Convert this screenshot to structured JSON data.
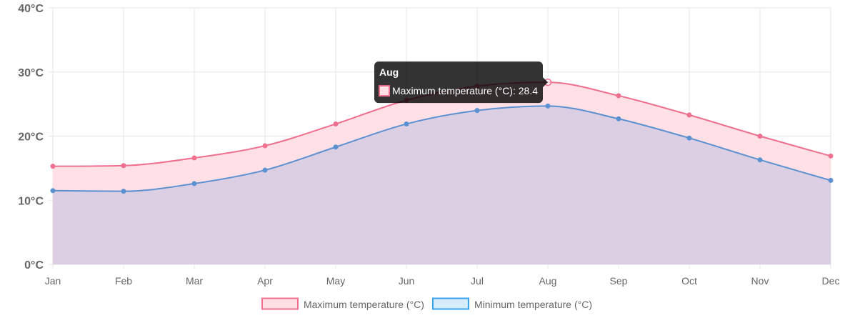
{
  "chart_data": {
    "type": "area",
    "title": "",
    "xlabel": "",
    "ylabel": "",
    "categories": [
      "Jan",
      "Feb",
      "Mar",
      "Apr",
      "May",
      "Jun",
      "Jul",
      "Aug",
      "Sep",
      "Oct",
      "Nov",
      "Dec"
    ],
    "ylim": [
      0,
      40
    ],
    "y_ticks": [
      "0°C",
      "10°C",
      "20°C",
      "30°C",
      "40°C"
    ],
    "grid": true,
    "legend_position": "bottom",
    "series": [
      {
        "name": "Maximum temperature (°C)",
        "values": [
          15.3,
          15.4,
          16.6,
          18.5,
          21.9,
          25.6,
          27.8,
          28.4,
          26.3,
          23.3,
          20.0,
          16.9
        ],
        "line_color": "#ef6f8f",
        "fill_color": "#ffe0e6"
      },
      {
        "name": "Minimum temperature (°C)",
        "values": [
          11.5,
          11.4,
          12.6,
          14.7,
          18.3,
          21.9,
          24.0,
          24.7,
          22.7,
          19.7,
          16.3,
          13.1
        ],
        "line_color": "#5b91d1",
        "fill_color": "#dccfe4",
        "legend_fill": "#d6ecfb",
        "legend_border": "#36a2eb"
      }
    ],
    "tooltip": {
      "title": "Aug",
      "label": "Maximum temperature (°C): 28.4",
      "series_index": 0,
      "category_index": 7
    }
  }
}
